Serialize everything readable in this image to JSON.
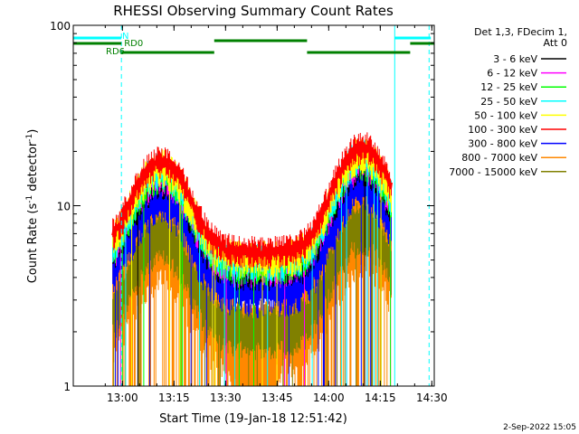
{
  "chart_data": {
    "type": "line",
    "title": "RHESSI Observing Summary Count Rates",
    "xlabel": "Start Time (19-Jan-18 12:51:42)",
    "ylabel_main": "Count Rate (s",
    "ylabel_exp1": "-1",
    "ylabel_mid": " detector",
    "ylabel_exp2": "-1",
    "ylabel_end": ")",
    "y_scale": "log",
    "ylim": [
      1,
      100
    ],
    "xlim_minutes": [
      -6,
      99
    ],
    "x_ticks": [
      {
        "t": 8.3,
        "label": "13:00"
      },
      {
        "t": 23.3,
        "label": "13:15"
      },
      {
        "t": 38.3,
        "label": "13:30"
      },
      {
        "t": 53.3,
        "label": "13:45"
      },
      {
        "t": 68.3,
        "label": "14:00"
      },
      {
        "t": 83.3,
        "label": "14:15"
      },
      {
        "t": 98.3,
        "label": "14:30"
      }
    ],
    "y_ticks": [
      {
        "v": 1,
        "label": "1"
      },
      {
        "v": 10,
        "label": "10"
      },
      {
        "v": 100,
        "label": "100"
      }
    ],
    "legend_title": [
      "Det 1,3, FDecim 1,",
      "Att 0"
    ],
    "legend_placement": "right, outside plot",
    "series": [
      {
        "name": "3 - 6 keV",
        "color": "#000000"
      },
      {
        "name": "6 - 12 keV",
        "color": "#ff00ff"
      },
      {
        "name": "12 - 25 keV",
        "color": "#00ff00"
      },
      {
        "name": "25 - 50 keV",
        "color": "#00ffff"
      },
      {
        "name": "50 - 100 keV",
        "color": "#ffff00"
      },
      {
        "name": "100 - 300 keV",
        "color": "#ff0000"
      },
      {
        "name": "300 - 800 keV",
        "color": "#0000ff"
      },
      {
        "name": "800 - 7000 keV",
        "color": "#ff8800"
      },
      {
        "name": "7000 - 15000 keV",
        "color": "#808000"
      }
    ],
    "profiles": {
      "start": 5.5,
      "end": 86.5,
      "gap": [
        41,
        53
      ],
      "peaks": [
        {
          "t": 19.5,
          "v": 16
        },
        {
          "t": 78,
          "v": 19
        }
      ],
      "base_red": 5,
      "base_blue": 3.4,
      "base_orange": 2.2
    },
    "annotations": [
      {
        "label": "N",
        "color": "#00ffff",
        "segments": [
          [
            -6,
            8
          ],
          [
            87.5,
            98
          ]
        ]
      },
      {
        "label": "RD0",
        "color": "#008000",
        "segments": [
          [
            35,
            62
          ]
        ]
      },
      {
        "label": "RD6",
        "color": "#008000",
        "segments": [
          [
            8,
            35
          ],
          [
            62,
            92
          ]
        ]
      },
      {
        "label": "",
        "color": "#008000",
        "segments": [
          [
            -6,
            8
          ],
          [
            92,
            99
          ]
        ]
      }
    ],
    "vlines_solid": [
      -6,
      87.5
    ],
    "vlines_dashed": [
      8,
      97.5
    ],
    "footer_date": "2-Sep-2022 15:05"
  }
}
